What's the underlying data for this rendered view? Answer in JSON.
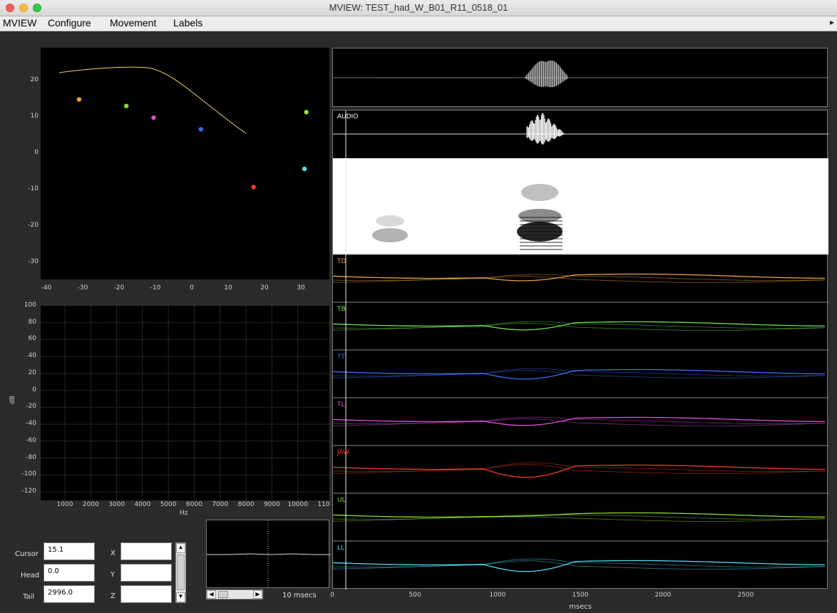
{
  "window": {
    "title": "MVIEW:  TEST_had_W_B01_R11_0518_01"
  },
  "menu": [
    "MVIEW",
    "Configure",
    "Movement",
    "Labels"
  ],
  "menu_overflow": "▸",
  "xy_plot": {
    "x_ticks": [
      "-40",
      "-30",
      "-20",
      "-10",
      "0",
      "10",
      "20",
      "30"
    ],
    "y_ticks": [
      "20",
      "10",
      "0",
      "-10",
      "-20",
      "-30"
    ],
    "points": [
      {
        "x": -31,
        "y": 14.8,
        "color": "#f0a030"
      },
      {
        "x": -18,
        "y": 13.0,
        "color": "#7fdc3a"
      },
      {
        "x": -10.5,
        "y": 9.8,
        "color": "#e24cd0"
      },
      {
        "x": 2.5,
        "y": 6.6,
        "color": "#2f6ef0"
      },
      {
        "x": 17,
        "y": -9.3,
        "color": "#e8402c"
      },
      {
        "x": 31,
        "y": -4.3,
        "color": "#4ee0f0"
      },
      {
        "x": 31.5,
        "y": 11.3,
        "color": "#9ae02a"
      }
    ],
    "curve_color": "#e7d850"
  },
  "spectrum": {
    "ylabel": "dB",
    "xlabel": "Hz",
    "y_ticks": [
      "100",
      "80",
      "60",
      "40",
      "20",
      "0",
      "-20",
      "-40",
      "-60",
      "-80",
      "-100",
      "-120"
    ],
    "x_ticks": [
      "1000",
      "2000",
      "3000",
      "4000",
      "5000",
      "6000",
      "7000",
      "8000",
      "9000",
      "10000",
      "110"
    ]
  },
  "controls": {
    "cursor_label": "Cursor",
    "cursor_value": "15.1",
    "head_label": "Head",
    "head_value": "0.0",
    "tail_label": "Tail",
    "tail_value": "2996.0",
    "x_label": "X",
    "y_label": "Y",
    "z_label": "Z",
    "x_value": "",
    "y_value": "",
    "z_value": "",
    "scroll_up": "▲",
    "scroll_down": "▼",
    "scroll_left": "◀",
    "scroll_right": "▶"
  },
  "mini_trace": {
    "window_label": "10 msecs"
  },
  "tracks": {
    "audio_label": "AUDIO",
    "channels": [
      {
        "name": "TD",
        "color": "#e8a040"
      },
      {
        "name": "TB",
        "color": "#6fe050"
      },
      {
        "name": "TT",
        "color": "#3f6cf0"
      },
      {
        "name": "TL",
        "color": "#e050d8"
      },
      {
        "name": "JAW",
        "color": "#f03a2c"
      },
      {
        "name": "UL",
        "color": "#8fd830"
      },
      {
        "name": "LL",
        "color": "#50d8f0"
      }
    ],
    "x_ticks": [
      "0",
      "500",
      "1000",
      "1500",
      "2000",
      "2500"
    ],
    "xlabel": "msecs"
  }
}
